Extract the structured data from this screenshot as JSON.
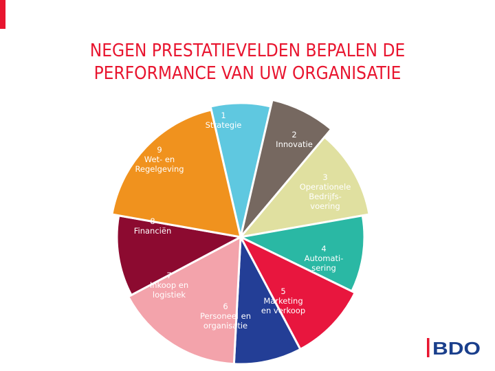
{
  "title": {
    "line1": "NEGEN PRESTATIEVELDEN BEPALEN DE",
    "line2": "PERFORMANCE VAN UW ORGANISATIE"
  },
  "segments": [
    {
      "num": "1",
      "lines": [
        "Strategie"
      ],
      "color": "#5fc8e0",
      "text_color": "#ffffff"
    },
    {
      "num": "2",
      "lines": [
        "Innovatie"
      ],
      "color": "#766860",
      "text_color": "#ffffff"
    },
    {
      "num": "3",
      "lines": [
        "Operationele",
        "Bedrijfs-",
        "voering"
      ],
      "color": "#e0e0a0",
      "text_color": "#ffffff"
    },
    {
      "num": "4",
      "lines": [
        "Automati-",
        "sering"
      ],
      "color": "#2ab8a4",
      "text_color": "#ffffff"
    },
    {
      "num": "5",
      "lines": [
        "Marketing",
        "en verkoop"
      ],
      "color": "#e8163e",
      "text_color": "#ffffff"
    },
    {
      "num": "6",
      "lines": [
        "Personeel en",
        "organisatie"
      ],
      "color": "#233e96",
      "text_color": "#ffffff"
    },
    {
      "num": "7",
      "lines": [
        "Inkoop en",
        "logistiek"
      ],
      "color": "#f3a3ab",
      "text_color": "#ffffff"
    },
    {
      "num": "8",
      "lines": [
        "Financiën"
      ],
      "color": "#8c0a30",
      "text_color": "#ffffff"
    },
    {
      "num": "9",
      "lines": [
        "Wet- en",
        "Regelgeving"
      ],
      "color": "#f0921e",
      "text_color": "#ffffff"
    }
  ],
  "logo": {
    "text": "BDO",
    "color": "#e8152f",
    "text_color": "#1a3f8c"
  }
}
